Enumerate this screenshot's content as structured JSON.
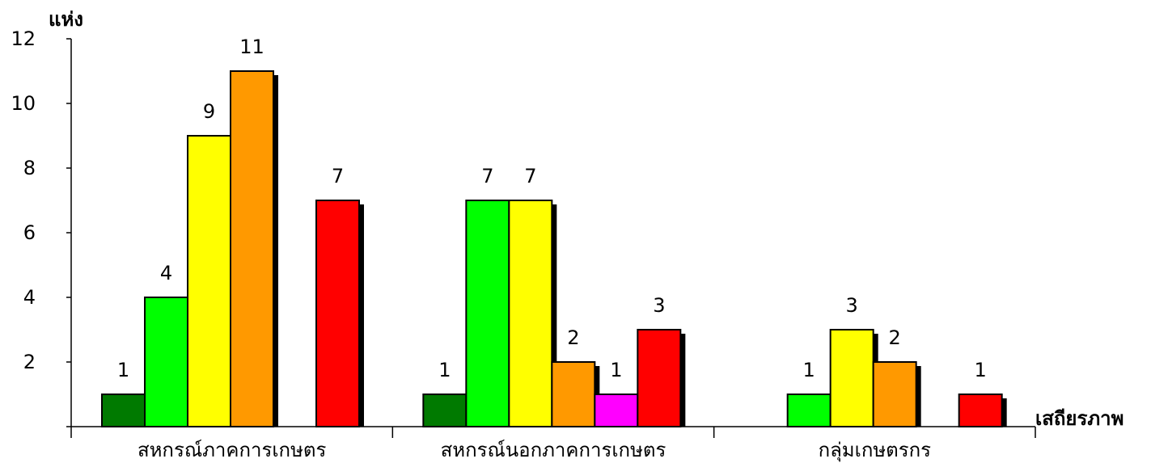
{
  "chart_data": {
    "type": "bar",
    "ylabel": "แห่ง",
    "xlabel": "เสถียรภาพ",
    "ylim": [
      0,
      12
    ],
    "yticks": [
      2,
      4,
      6,
      8,
      10,
      12
    ],
    "grid": false,
    "legend": "none",
    "categories": [
      "สหกรณ์ภาคการเกษตร",
      "สหกรณ์นอกภาคการเกษตร",
      "กลุ่มเกษตรกร"
    ],
    "bar_colors": [
      "#007a00",
      "#00ff00",
      "#ffff00",
      "#ff9900",
      "#ff00ff",
      "#ff0000"
    ],
    "series": [
      {
        "values": [
          1,
          1,
          null
        ]
      },
      {
        "values": [
          4,
          7,
          1
        ]
      },
      {
        "values": [
          9,
          7,
          3
        ]
      },
      {
        "values": [
          11,
          2,
          2
        ]
      },
      {
        "values": [
          null,
          1,
          null
        ]
      },
      {
        "values": [
          7,
          3,
          1
        ]
      }
    ]
  }
}
